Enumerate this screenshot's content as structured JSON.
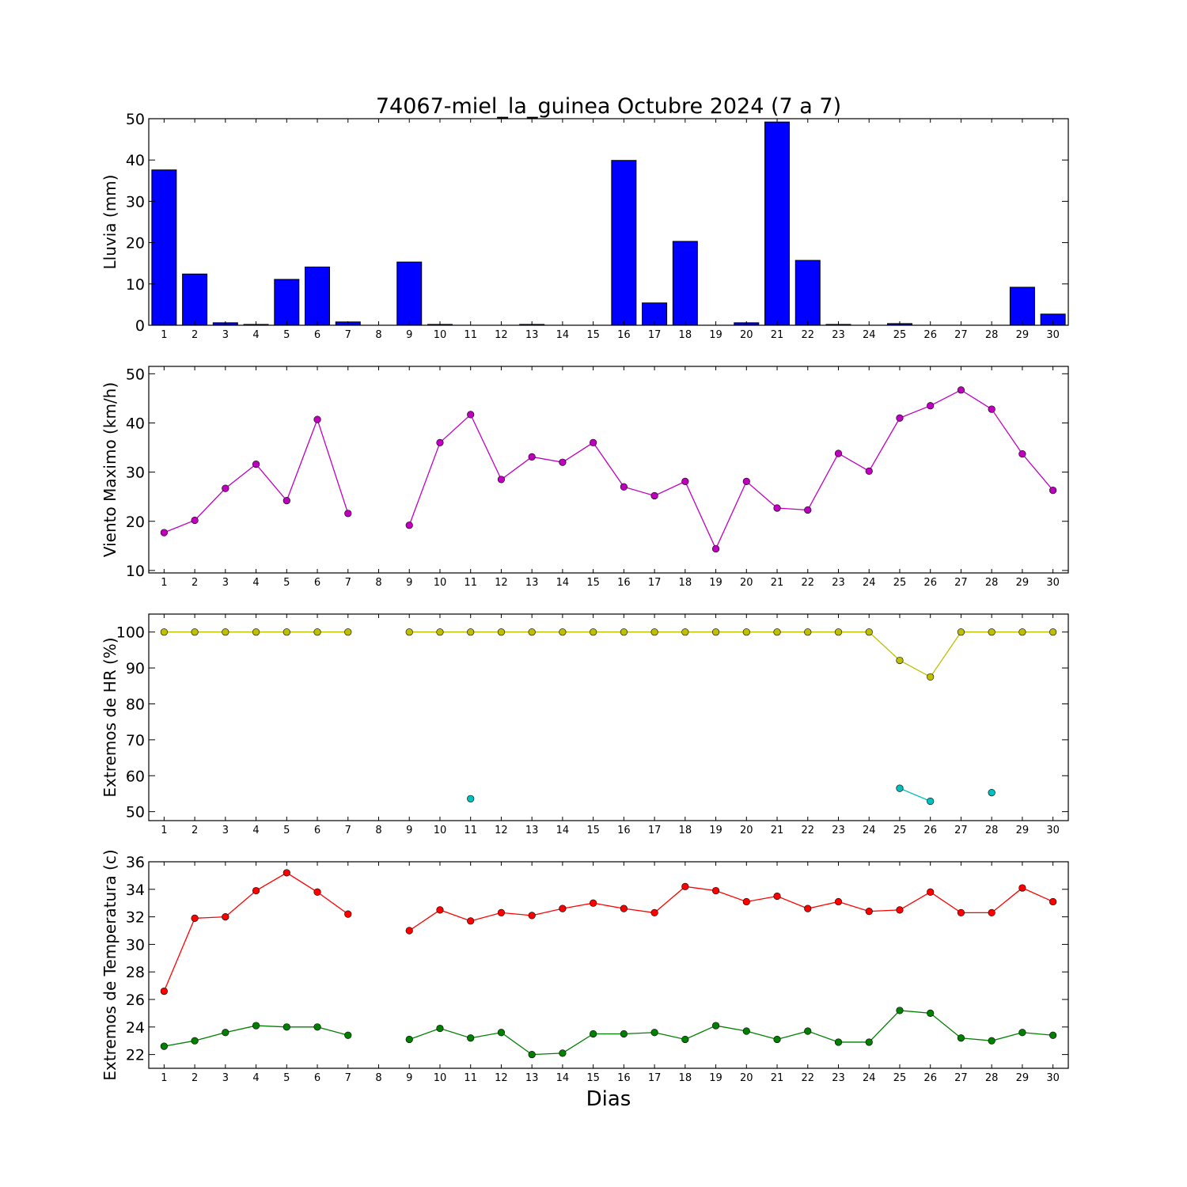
{
  "title": "74067-miel_la_guinea Octubre 2024  (7 a 7)",
  "xlabel": "Dias",
  "chart_data": [
    {
      "type": "bar",
      "ylabel": "Lluvia (mm)",
      "ylim": [
        0,
        50
      ],
      "yticks": [
        0,
        10,
        20,
        30,
        40,
        50
      ],
      "xlim": [
        0.5,
        30.5
      ],
      "x": [
        1,
        2,
        3,
        4,
        5,
        6,
        7,
        8,
        9,
        10,
        11,
        12,
        13,
        14,
        15,
        16,
        17,
        18,
        19,
        20,
        21,
        22,
        23,
        24,
        25,
        26,
        27,
        28,
        29,
        30
      ],
      "values": [
        37.6,
        12.4,
        0.6,
        0.2,
        11.1,
        14.1,
        0.8,
        0,
        15.3,
        0.2,
        0,
        0,
        0.2,
        0,
        0,
        39.9,
        5.4,
        20.3,
        0,
        0.6,
        49.2,
        15.7,
        0.2,
        0,
        0.4,
        0,
        0,
        0,
        9.2,
        2.7
      ],
      "color": "#0000ff"
    },
    {
      "type": "line",
      "ylabel": "Viento Maximo (km/h)",
      "ylim": [
        9.5,
        51.5
      ],
      "yticks": [
        10,
        20,
        30,
        40,
        50
      ],
      "xlim": [
        0.5,
        30.5
      ],
      "x": [
        1,
        2,
        3,
        4,
        5,
        6,
        7,
        8,
        9,
        10,
        11,
        12,
        13,
        14,
        15,
        16,
        17,
        18,
        19,
        20,
        21,
        22,
        23,
        24,
        25,
        26,
        27,
        28,
        29,
        30
      ],
      "series": [
        {
          "color": "#bf00bf",
          "values": [
            17.7,
            20.2,
            26.7,
            31.6,
            24.2,
            40.7,
            21.6,
            null,
            19.2,
            36.0,
            41.7,
            28.5,
            33.1,
            32.0,
            36.0,
            27.0,
            25.2,
            28.1,
            14.4,
            28.1,
            22.7,
            22.3,
            33.8,
            30.2,
            41.0,
            43.5,
            46.7,
            42.8,
            33.7,
            26.3
          ]
        }
      ]
    },
    {
      "type": "line",
      "ylabel": "Extremos de HR (%)",
      "ylim": [
        47.5,
        105
      ],
      "yticks": [
        50,
        60,
        70,
        80,
        90,
        100
      ],
      "xlim": [
        0.5,
        30.5
      ],
      "x": [
        1,
        2,
        3,
        4,
        5,
        6,
        7,
        8,
        9,
        10,
        11,
        12,
        13,
        14,
        15,
        16,
        17,
        18,
        19,
        20,
        21,
        22,
        23,
        24,
        25,
        26,
        27,
        28,
        29,
        30
      ],
      "series": [
        {
          "color": "#bfbf00",
          "values": [
            100,
            100,
            100,
            100,
            100,
            100,
            100,
            null,
            100,
            100,
            100,
            100,
            100,
            100,
            100,
            100,
            100,
            100,
            100,
            100,
            100,
            100,
            100,
            100,
            92.1,
            87.5,
            100,
            100,
            100,
            100
          ]
        },
        {
          "color": "#00bfbf",
          "values": [
            null,
            null,
            null,
            null,
            null,
            null,
            null,
            null,
            null,
            null,
            53.6,
            null,
            null,
            null,
            null,
            null,
            null,
            null,
            null,
            null,
            null,
            null,
            null,
            null,
            56.5,
            52.9,
            null,
            55.3,
            null,
            null
          ]
        }
      ]
    },
    {
      "type": "line",
      "ylabel": "Extremos de Temperatura (c)",
      "ylim": [
        21,
        36
      ],
      "yticks": [
        22,
        24,
        26,
        28,
        30,
        32,
        34,
        36
      ],
      "xlim": [
        0.5,
        30.5
      ],
      "x": [
        1,
        2,
        3,
        4,
        5,
        6,
        7,
        8,
        9,
        10,
        11,
        12,
        13,
        14,
        15,
        16,
        17,
        18,
        19,
        20,
        21,
        22,
        23,
        24,
        25,
        26,
        27,
        28,
        29,
        30
      ],
      "series": [
        {
          "color": "#ff0000",
          "values": [
            26.6,
            31.9,
            32.0,
            33.9,
            35.2,
            33.8,
            32.2,
            null,
            31.0,
            32.5,
            31.7,
            32.3,
            32.1,
            32.6,
            33.0,
            32.6,
            32.3,
            34.2,
            33.9,
            33.1,
            33.5,
            32.6,
            33.1,
            32.4,
            32.5,
            33.8,
            32.3,
            32.3,
            34.1,
            33.1
          ]
        },
        {
          "color": "#007f00",
          "values": [
            22.6,
            23.0,
            23.6,
            24.1,
            24.0,
            24.0,
            23.4,
            null,
            23.1,
            23.9,
            23.2,
            23.6,
            22.0,
            22.1,
            23.5,
            23.5,
            23.6,
            23.1,
            24.1,
            23.7,
            23.1,
            23.7,
            22.9,
            22.9,
            25.2,
            25.0,
            23.2,
            23.0,
            23.6,
            23.4
          ]
        }
      ]
    }
  ]
}
